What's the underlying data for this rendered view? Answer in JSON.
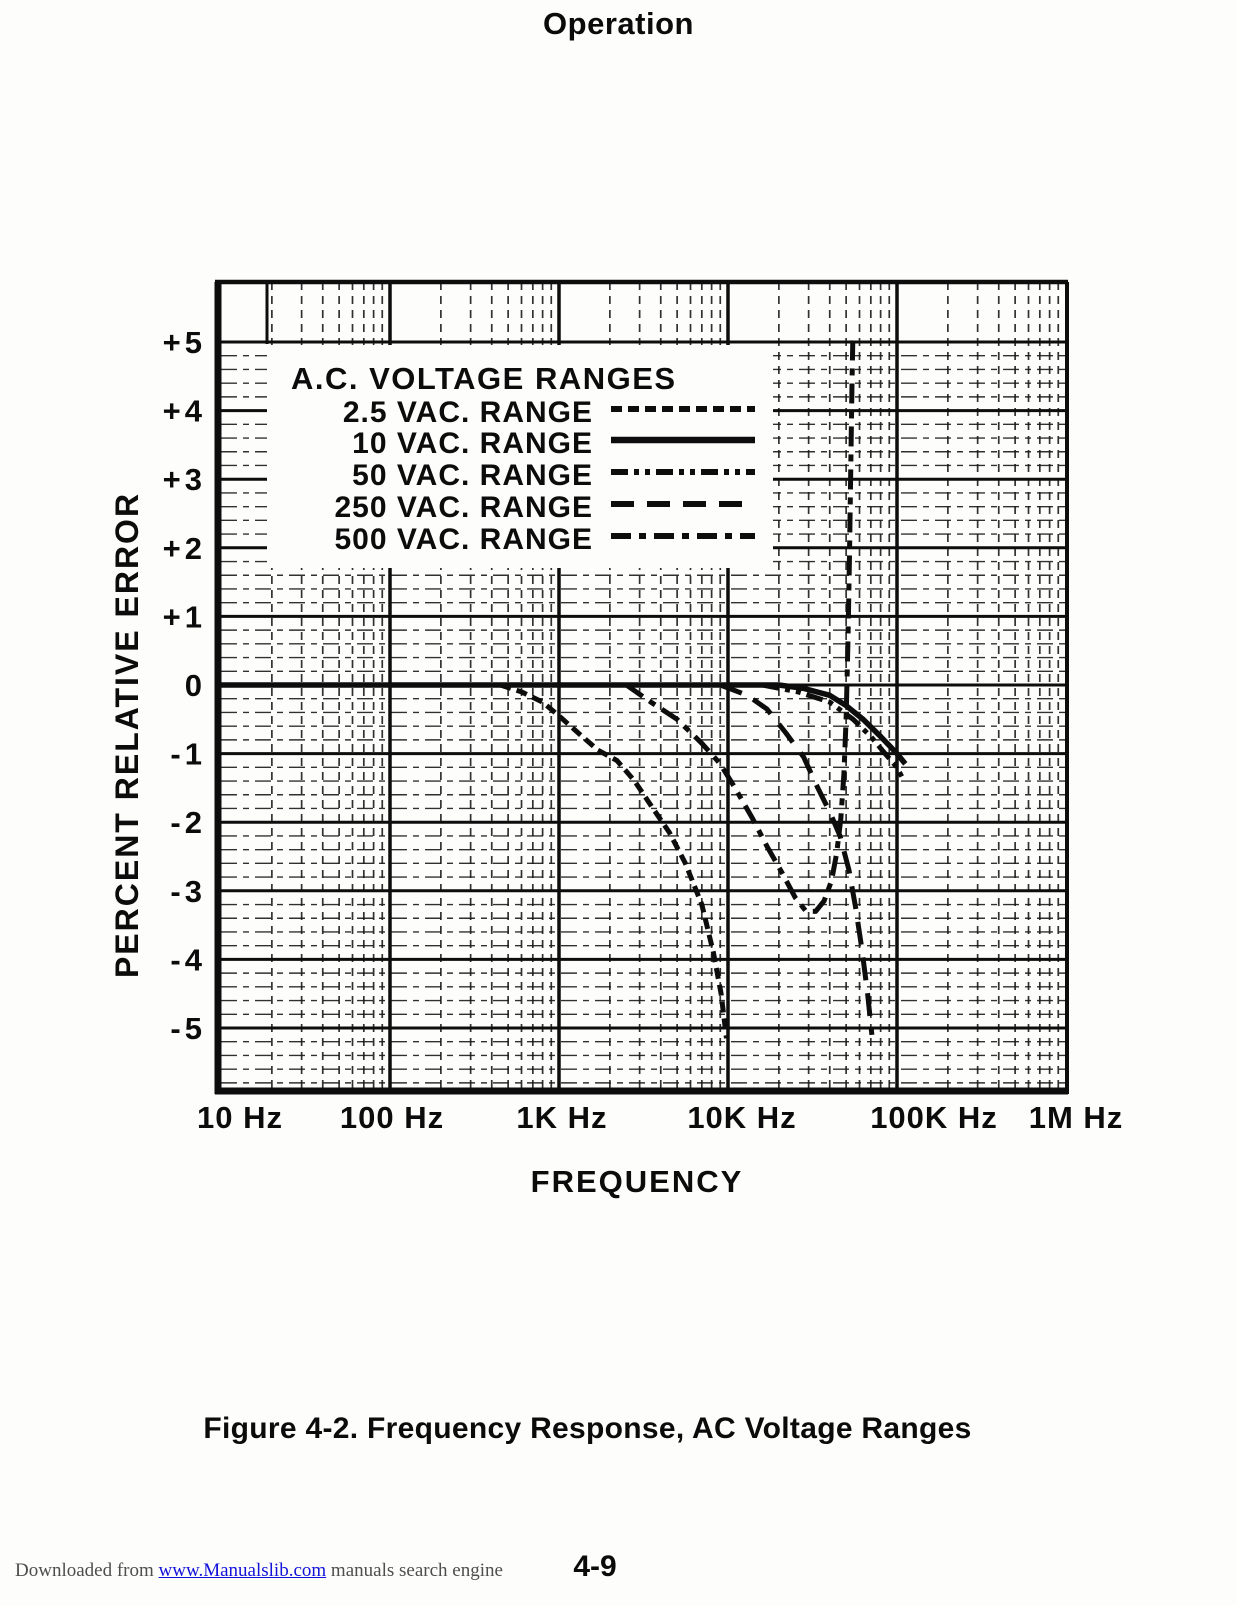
{
  "page": {
    "title": "Operation",
    "caption": "Figure 4-2. Frequency Response, AC Voltage Ranges",
    "page_number": "4-9"
  },
  "footer": {
    "prefix": "Downloaded from ",
    "link": "www.Manualslib.com",
    "suffix": " manuals search engine"
  },
  "colors": {
    "ink": "#0d0d0d",
    "link_blue": "#1212d8",
    "footer_gray": "#4e4e4e",
    "paper": "#fdfdfc"
  },
  "chart_data": {
    "type": "line",
    "x_scale": "log",
    "xlabel": "FREQUENCY",
    "ylabel": "PERCENT RELATIVE ERROR",
    "xlim": [
      10,
      1000000
    ],
    "ylim": [
      -6,
      6
    ],
    "grid": "log-major-minor",
    "legend_position": "upper-left-inside",
    "legend_title": "A.C. VOLTAGE RANGES",
    "x_ticks": [
      {
        "f": 10,
        "label": "10 Hz"
      },
      {
        "f": 100,
        "label": "100 Hz"
      },
      {
        "f": 1000,
        "label": "1K Hz"
      },
      {
        "f": 10000,
        "label": "10K Hz"
      },
      {
        "f": 100000,
        "label": "100K Hz"
      },
      {
        "f": 1000000,
        "label": "1M Hz"
      }
    ],
    "y_ticks": [
      {
        "v": 5,
        "label": "+5"
      },
      {
        "v": 4,
        "label": "+4"
      },
      {
        "v": 3,
        "label": "+3"
      },
      {
        "v": 2,
        "label": "+2"
      },
      {
        "v": 1,
        "label": "+1"
      },
      {
        "v": 0,
        "label": "0"
      },
      {
        "v": -1,
        "label": "-1"
      },
      {
        "v": -2,
        "label": "-2"
      },
      {
        "v": -3,
        "label": "-3"
      },
      {
        "v": -4,
        "label": "-4"
      },
      {
        "v": -5,
        "label": "-5"
      }
    ],
    "series": [
      {
        "name": "2.5 VAC. RANGE",
        "style": "short-dash",
        "points": [
          [
            450,
            0
          ],
          [
            600,
            -0.1
          ],
          [
            800,
            -0.25
          ],
          [
            1000,
            -0.45
          ],
          [
            1300,
            -0.7
          ],
          [
            1700,
            -0.95
          ],
          [
            2200,
            -1.1
          ],
          [
            2800,
            -1.4
          ],
          [
            3600,
            -1.8
          ],
          [
            4500,
            -2.15
          ],
          [
            5600,
            -2.6
          ],
          [
            7000,
            -3.2
          ],
          [
            8200,
            -3.9
          ],
          [
            9100,
            -4.5
          ],
          [
            9800,
            -5.15
          ]
        ]
      },
      {
        "name": "10 VAC. RANGE",
        "style": "solid",
        "points": [
          [
            10,
            0
          ],
          [
            20000,
            0
          ],
          [
            28000,
            -0.05
          ],
          [
            40000,
            -0.15
          ],
          [
            50000,
            -0.3
          ],
          [
            63000,
            -0.5
          ],
          [
            80000,
            -0.75
          ],
          [
            100000,
            -1.0
          ],
          [
            112000,
            -1.15
          ]
        ]
      },
      {
        "name": "50 VAC. RANGE",
        "style": "dash-dot-dot",
        "points": [
          [
            16000,
            0
          ],
          [
            26000,
            -0.1
          ],
          [
            40000,
            -0.25
          ],
          [
            55000,
            -0.5
          ],
          [
            70000,
            -0.75
          ],
          [
            85000,
            -1.0
          ],
          [
            100000,
            -1.2
          ],
          [
            110000,
            -1.4
          ]
        ]
      },
      {
        "name": "250 VAC. RANGE",
        "style": "long-dash",
        "points": [
          [
            9000,
            0
          ],
          [
            13000,
            -0.15
          ],
          [
            17000,
            -0.35
          ],
          [
            22000,
            -0.7
          ],
          [
            28000,
            -1.05
          ],
          [
            34000,
            -1.5
          ],
          [
            40000,
            -1.85
          ],
          [
            46000,
            -2.2
          ],
          [
            52000,
            -2.7
          ],
          [
            57000,
            -3.25
          ],
          [
            62000,
            -3.85
          ],
          [
            67000,
            -4.5
          ],
          [
            71000,
            -5.1
          ]
        ]
      },
      {
        "name": "500 VAC. RANGE",
        "style": "dash-dot",
        "points": [
          [
            2500,
            0
          ],
          [
            3500,
            -0.25
          ],
          [
            5000,
            -0.5
          ],
          [
            7000,
            -0.85
          ],
          [
            9000,
            -1.15
          ],
          [
            11000,
            -1.5
          ],
          [
            14000,
            -1.95
          ],
          [
            17000,
            -2.35
          ],
          [
            21000,
            -2.75
          ],
          [
            25000,
            -3.1
          ],
          [
            29000,
            -3.3
          ],
          [
            33000,
            -3.3
          ],
          [
            37000,
            -3.15
          ],
          [
            41000,
            -2.85
          ],
          [
            44000,
            -2.45
          ],
          [
            46500,
            -1.95
          ],
          [
            48500,
            -1.3
          ],
          [
            50000,
            -0.5
          ],
          [
            51200,
            0.6
          ],
          [
            52300,
            1.8
          ],
          [
            53300,
            3.2
          ],
          [
            54200,
            4.4
          ],
          [
            54800,
            5.1
          ]
        ]
      }
    ]
  }
}
